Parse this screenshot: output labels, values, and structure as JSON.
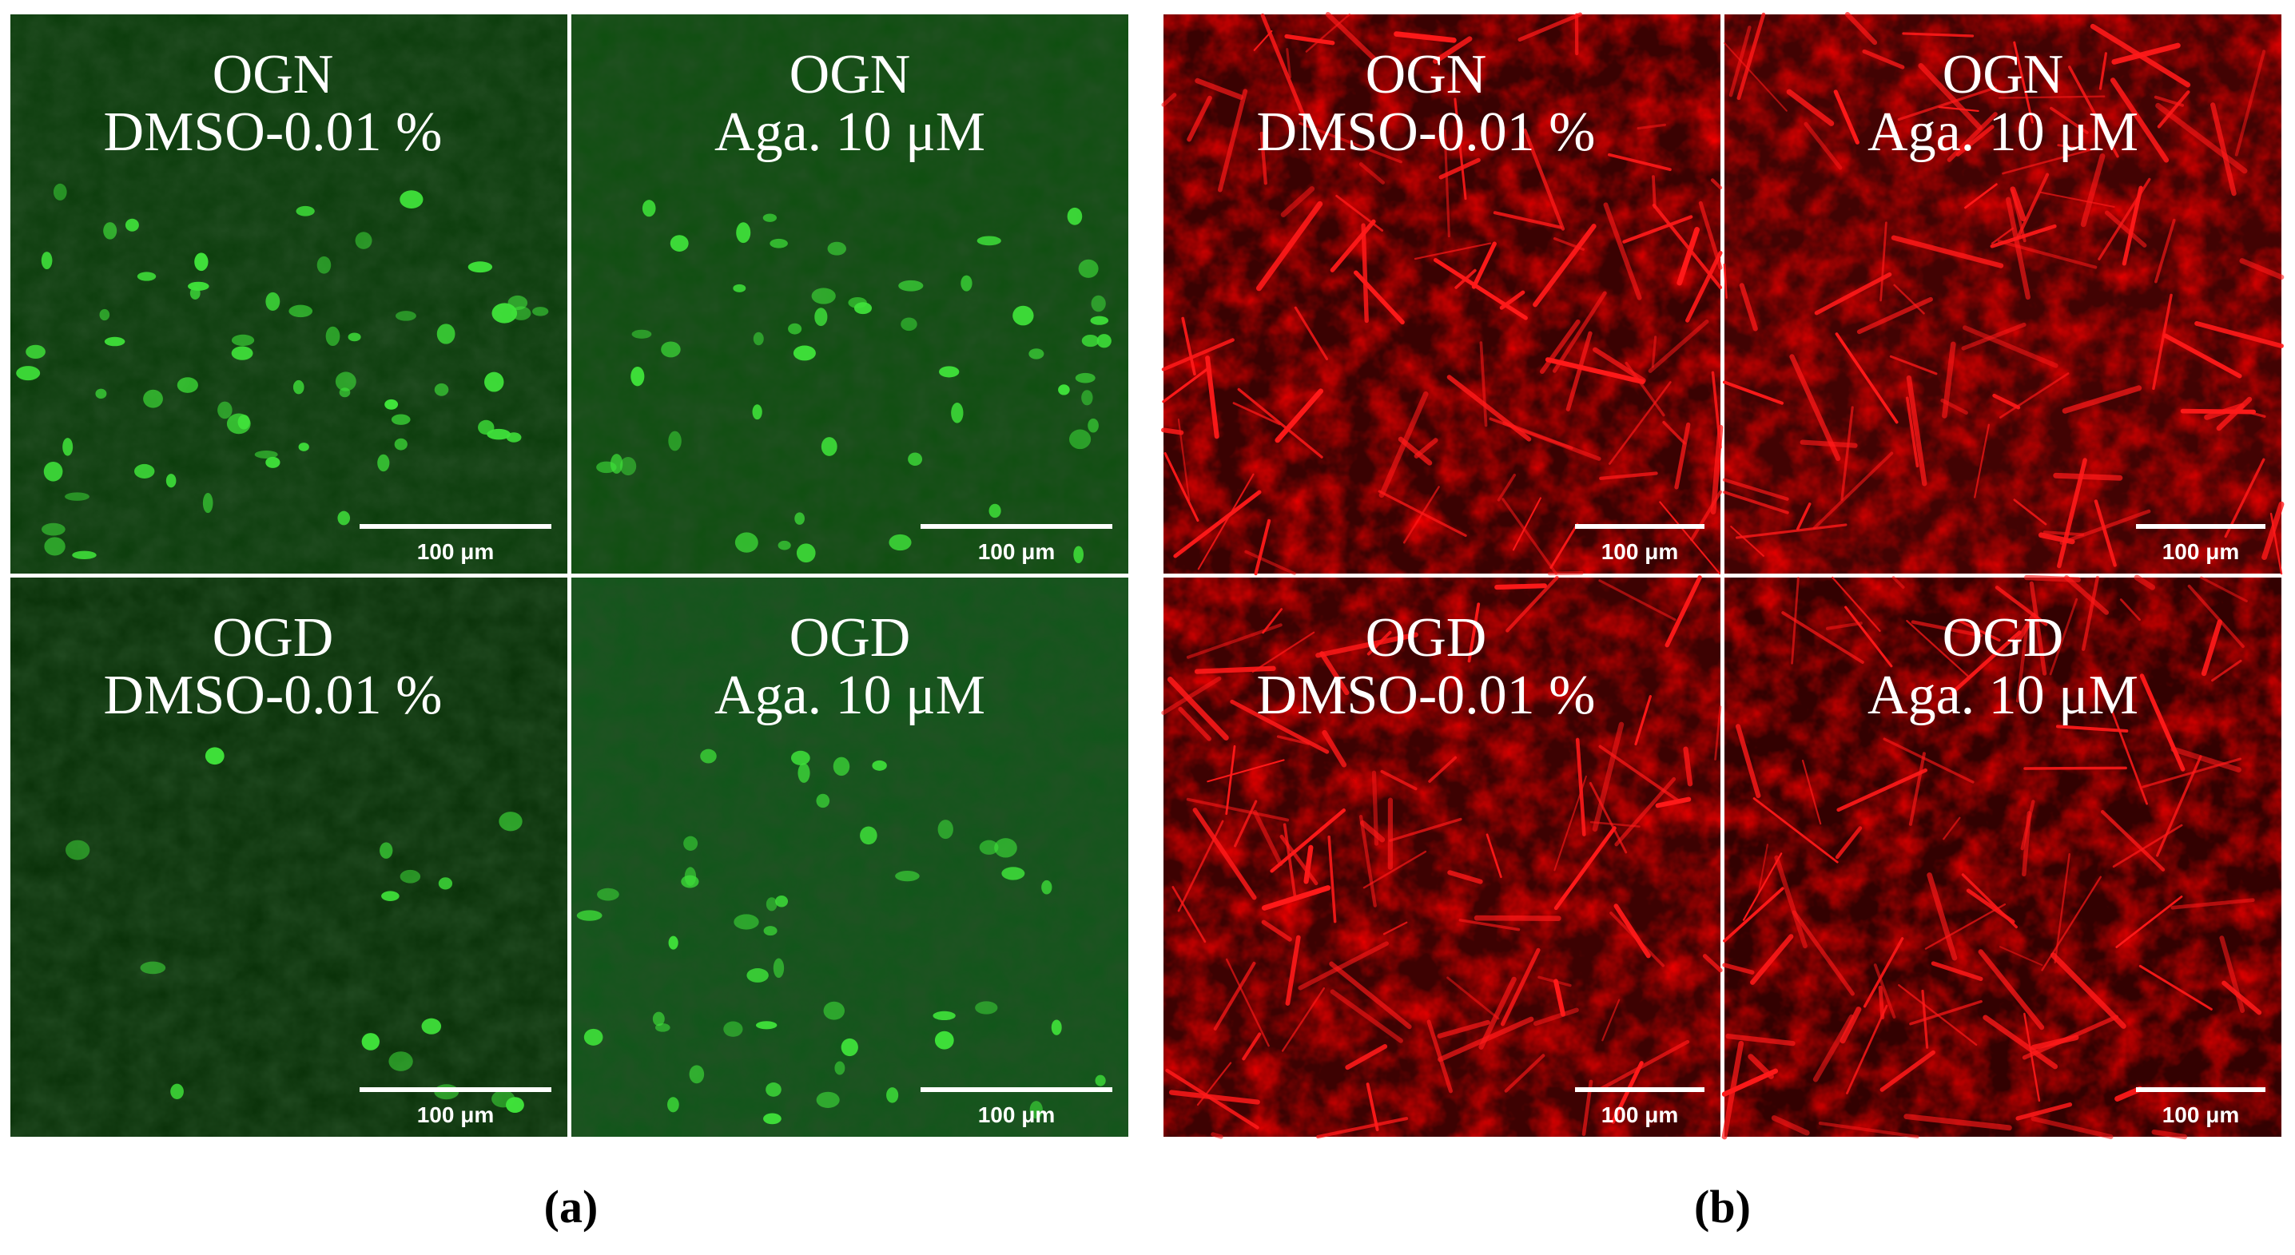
{
  "figure": {
    "groups": [
      {
        "caption": "(a)",
        "color": "green",
        "panels": [
          {
            "line1": "OGN",
            "line2": "DMSO-0.01 %",
            "scale": "100 μm"
          },
          {
            "line1": "OGN",
            "line2": "Aga. 10 μM",
            "scale": "100 μm"
          },
          {
            "line1": "OGD",
            "line2": "DMSO-0.01 %",
            "scale": "100 μm"
          },
          {
            "line1": "OGD",
            "line2": "Aga. 10 μM",
            "scale": "100 μm"
          }
        ]
      },
      {
        "caption": "(b)",
        "color": "red",
        "panels": [
          {
            "line1": "OGN",
            "line2": "DMSO-0.01 %",
            "scale": "100 μm"
          },
          {
            "line1": "OGN",
            "line2": "Aga. 10 μM",
            "scale": "100 μm"
          },
          {
            "line1": "OGD",
            "line2": "DMSO-0.01 %",
            "scale": "100 μm"
          },
          {
            "line1": "OGD",
            "line2": "Aga. 10 μM",
            "scale": "100 μm"
          }
        ]
      }
    ]
  }
}
